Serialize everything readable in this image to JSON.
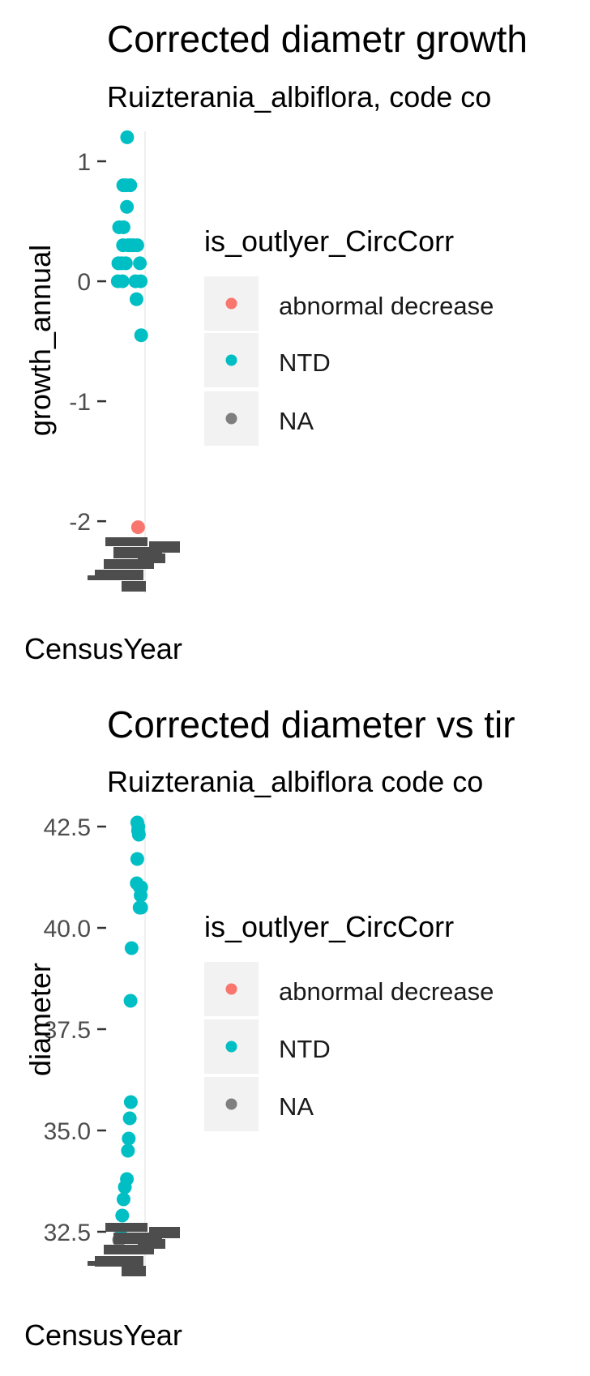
{
  "chart_data": [
    {
      "type": "scatter",
      "title": "Corrected diametr growth",
      "subtitle": "Ruizterania_albiflora, code co",
      "xlabel": "CensusYear",
      "ylabel": "growth_annual",
      "y_ticks": [
        "1",
        "0",
        "-1",
        "-2"
      ],
      "ylim": [
        -2.6,
        1.25
      ],
      "x_tick_labels": "overlapping, illegible",
      "legend": {
        "title": "is_outlyer_CircCorr",
        "entries": [
          {
            "label": "abnormal decrease",
            "color": "#F8766D"
          },
          {
            "label": "NTD",
            "color": "#00BFC4"
          },
          {
            "label": "NA",
            "color": "#7F7F7F"
          }
        ],
        "placement": "right"
      },
      "series": [
        {
          "name": "NTD",
          "color": "#00BFC4",
          "points": [
            [
              0.6,
              1.2
            ],
            [
              -0.9,
              0.8
            ],
            [
              0.2,
              0.8
            ],
            [
              1.8,
              0.8
            ],
            [
              -2.5,
              0.45
            ],
            [
              -0.8,
              0.45
            ],
            [
              0.5,
              0.62
            ],
            [
              1.0,
              0.3
            ],
            [
              -1.0,
              0.3
            ],
            [
              2.0,
              0.3
            ],
            [
              3.0,
              0.3
            ],
            [
              4.5,
              0.3
            ],
            [
              -2.8,
              0.15
            ],
            [
              -1.5,
              0.15
            ],
            [
              0.1,
              0.15
            ],
            [
              5.5,
              0.15
            ],
            [
              -3.0,
              0.0
            ],
            [
              -1.2,
              0.0
            ],
            [
              3.8,
              0.0
            ],
            [
              5.8,
              0.0
            ],
            [
              4.2,
              -0.15
            ],
            [
              6.0,
              -0.45
            ]
          ]
        },
        {
          "name": "abnormal decrease",
          "color": "#F8766D",
          "points": [
            [
              4.8,
              -2.05
            ]
          ]
        }
      ]
    },
    {
      "type": "scatter",
      "title": "Corrected diameter vs tir",
      "subtitle": "Ruizterania_albiflora code co",
      "xlabel": "CensusYear",
      "ylabel": "diameter",
      "y_ticks": [
        "42.5",
        "40.0",
        "37.5",
        "35.0",
        "32.5"
      ],
      "ylim": [
        31.6,
        42.8
      ],
      "x_tick_labels": "overlapping, illegible",
      "legend": {
        "title": "is_outlyer_CircCorr",
        "entries": [
          {
            "label": "abnormal decrease",
            "color": "#F8766D"
          },
          {
            "label": "NTD",
            "color": "#00BFC4"
          },
          {
            "label": "NA",
            "color": "#7F7F7F"
          }
        ],
        "placement": "right"
      },
      "series": [
        {
          "name": "NTD",
          "color": "#00BFC4",
          "points": [
            [
              4.5,
              42.6
            ],
            [
              4.9,
              42.5
            ],
            [
              4.8,
              42.4
            ],
            [
              5.1,
              42.3
            ],
            [
              4.5,
              41.7
            ],
            [
              4.3,
              41.1
            ],
            [
              5.5,
              41.0
            ],
            [
              6.0,
              41.0
            ],
            [
              5.8,
              40.8
            ],
            [
              5.4,
              40.5
            ],
            [
              6.0,
              40.5
            ],
            [
              2.3,
              39.5
            ],
            [
              1.9,
              38.2
            ],
            [
              2.0,
              35.7
            ],
            [
              1.6,
              35.3
            ],
            [
              1.2,
              34.8
            ],
            [
              0.9,
              34.5
            ],
            [
              0.5,
              33.8
            ],
            [
              -0.3,
              33.6
            ],
            [
              -0.8,
              33.3
            ],
            [
              -1.3,
              32.9
            ],
            [
              -1.8,
              32.4
            ]
          ]
        },
        {
          "name": "NA",
          "color": "#7F7F7F",
          "points": [
            [
              -2.5,
              32.3
            ]
          ]
        }
      ]
    }
  ]
}
